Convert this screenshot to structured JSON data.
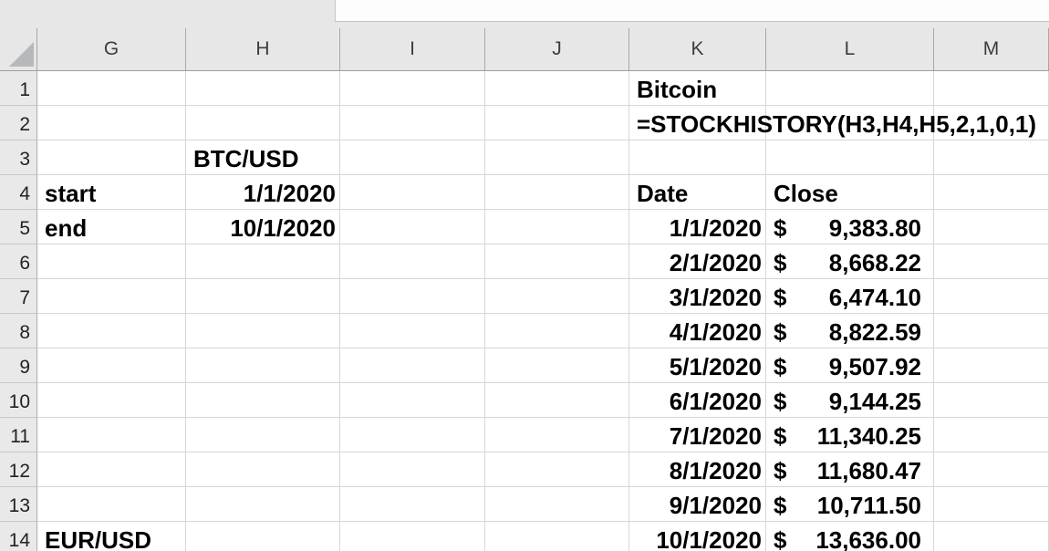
{
  "chrome": {
    "formula_bar_value": ""
  },
  "sheet": {
    "column_headers": [
      "G",
      "H",
      "I",
      "J",
      "K",
      "L",
      "M"
    ],
    "row_headers": [
      "1",
      "2",
      "3",
      "4",
      "5",
      "6",
      "7",
      "8",
      "9",
      "10",
      "11",
      "12",
      "13",
      "14"
    ],
    "cells": {
      "K1": {
        "text": "Bitcoin",
        "align": "left"
      },
      "K2": {
        "text": "=STOCKHISTORY(H3,H4,H5,2,1,0,1)",
        "align": "left",
        "overflow": true
      },
      "H3": {
        "text": "BTC/USD",
        "align": "left"
      },
      "G4": {
        "text": "start",
        "align": "left"
      },
      "H4": {
        "text": "1/1/2020",
        "align": "right"
      },
      "K4": {
        "text": "Date",
        "align": "left"
      },
      "L4": {
        "text": "Close",
        "align": "left"
      },
      "G5": {
        "text": "end",
        "align": "left"
      },
      "H5": {
        "text": "10/1/2020",
        "align": "right"
      },
      "K5": {
        "text": "1/1/2020",
        "align": "right"
      },
      "L5": {
        "currency": "$",
        "amount": "9,383.80"
      },
      "K6": {
        "text": "2/1/2020",
        "align": "right"
      },
      "L6": {
        "currency": "$",
        "amount": "8,668.22"
      },
      "K7": {
        "text": "3/1/2020",
        "align": "right"
      },
      "L7": {
        "currency": "$",
        "amount": "6,474.10"
      },
      "K8": {
        "text": "4/1/2020",
        "align": "right"
      },
      "L8": {
        "currency": "$",
        "amount": "8,822.59"
      },
      "K9": {
        "text": "5/1/2020",
        "align": "right"
      },
      "L9": {
        "currency": "$",
        "amount": "9,507.92"
      },
      "K10": {
        "text": "6/1/2020",
        "align": "right"
      },
      "L10": {
        "currency": "$",
        "amount": "9,144.25"
      },
      "K11": {
        "text": "7/1/2020",
        "align": "right"
      },
      "L11": {
        "currency": "$",
        "amount": "11,340.25"
      },
      "K12": {
        "text": "8/1/2020",
        "align": "right"
      },
      "L12": {
        "currency": "$",
        "amount": "11,680.47"
      },
      "K13": {
        "text": "9/1/2020",
        "align": "right"
      },
      "L13": {
        "currency": "$",
        "amount": "10,711.50"
      },
      "G14": {
        "text": "EUR/USD",
        "align": "left"
      },
      "K14": {
        "text": "10/1/2020",
        "align": "right"
      },
      "L14": {
        "currency": "$",
        "amount": "13,636.00"
      }
    },
    "colors": {
      "header_bg": "#e7e7e7",
      "gridline": "#d7d7d7",
      "header_separator": "#a8a8a8",
      "header_bottom_border": "#9e9e9e",
      "select_all_triangle": "#b6b9bb",
      "cell_text": "#000000",
      "header_text": "#3d3d3d"
    }
  }
}
